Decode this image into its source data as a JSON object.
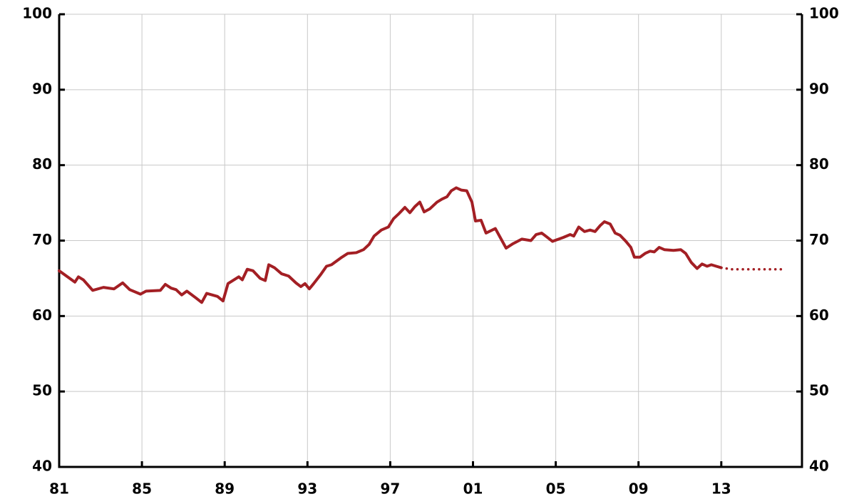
{
  "chart_data": {
    "type": "line",
    "xlim": [
      1981,
      2016.9
    ],
    "ylim": [
      40,
      100
    ],
    "xticks": [
      {
        "value": 1981,
        "label": "81"
      },
      {
        "value": 1985,
        "label": "85"
      },
      {
        "value": 1989,
        "label": "89"
      },
      {
        "value": 1993,
        "label": "93"
      },
      {
        "value": 1997,
        "label": "97"
      },
      {
        "value": 2001,
        "label": "01"
      },
      {
        "value": 2005,
        "label": "05"
      },
      {
        "value": 2009,
        "label": "09"
      },
      {
        "value": 2013,
        "label": "13"
      }
    ],
    "yticks": [
      40,
      50,
      60,
      70,
      80,
      90,
      100
    ],
    "y2lim": [
      40,
      100
    ],
    "y2ticks": [
      40,
      50,
      60,
      70,
      80,
      90,
      100
    ],
    "grid": true,
    "series": [
      {
        "color": "#a31f24",
        "style": "solid",
        "x": [
          1981.0,
          1981.76,
          1981.93,
          1982.17,
          1982.62,
          1983.14,
          1983.65,
          1984.07,
          1984.41,
          1984.93,
          1985.2,
          1985.89,
          1986.13,
          1986.41,
          1986.65,
          1986.92,
          1987.17,
          1987.61,
          1987.89,
          1988.13,
          1988.65,
          1988.92,
          1989.16,
          1989.68,
          1989.85,
          1990.09,
          1990.37,
          1990.71,
          1990.96,
          1991.13,
          1991.41,
          1991.75,
          1992.09,
          1992.44,
          1992.68,
          1992.88,
          1993.09,
          1993.3,
          1993.64,
          1993.92,
          1994.16,
          1994.61,
          1994.95,
          1995.36,
          1995.71,
          1995.98,
          1996.22,
          1996.57,
          1996.91,
          1997.16,
          1997.43,
          1997.71,
          1997.95,
          1998.19,
          1998.43,
          1998.64,
          1998.91,
          1999.26,
          1999.5,
          1999.74,
          1999.95,
          2000.19,
          2000.43,
          2000.7,
          2000.95,
          2001.12,
          2001.39,
          2001.63,
          2002.08,
          2002.32,
          2002.6,
          2002.94,
          2003.36,
          2003.8,
          2004.05,
          2004.32,
          2004.56,
          2004.84,
          2005.35,
          2005.7,
          2005.87,
          2006.11,
          2006.39,
          2006.66,
          2006.9,
          2007.15,
          2007.35,
          2007.63,
          2007.87,
          2008.11,
          2008.39,
          2008.63,
          2008.8,
          2009.07,
          2009.32,
          2009.56,
          2009.76,
          2010.0,
          2010.25,
          2010.69,
          2011.04,
          2011.28,
          2011.55,
          2011.83,
          2012.07,
          2012.31,
          2012.52,
          2012.76,
          2013.0
        ],
        "values": [
          66.0,
          64.5,
          65.2,
          64.8,
          63.4,
          63.8,
          63.6,
          64.4,
          63.5,
          62.9,
          63.3,
          63.4,
          64.2,
          63.7,
          63.5,
          62.8,
          63.3,
          62.4,
          61.8,
          63.0,
          62.6,
          62.0,
          64.3,
          65.2,
          64.8,
          66.2,
          66.0,
          65.0,
          64.7,
          66.8,
          66.4,
          65.6,
          65.3,
          64.4,
          63.9,
          64.3,
          63.6,
          64.3,
          65.5,
          66.6,
          66.8,
          67.7,
          68.3,
          68.4,
          68.8,
          69.5,
          70.6,
          71.4,
          71.8,
          72.9,
          73.6,
          74.4,
          73.7,
          74.5,
          75.1,
          73.8,
          74.2,
          75.1,
          75.5,
          75.8,
          76.6,
          77.0,
          76.7,
          76.6,
          75.1,
          72.6,
          72.7,
          71.0,
          71.6,
          70.4,
          69.0,
          69.6,
          70.2,
          70.0,
          70.8,
          71.0,
          70.5,
          69.9,
          70.4,
          70.8,
          70.6,
          71.8,
          71.2,
          71.4,
          71.2,
          72.0,
          72.5,
          72.2,
          71.0,
          70.7,
          69.9,
          69.1,
          67.8,
          67.8,
          68.3,
          68.6,
          68.5,
          69.1,
          68.8,
          68.7,
          68.8,
          68.3,
          67.1,
          66.3,
          66.9,
          66.6,
          66.8,
          66.6,
          66.4
        ]
      },
      {
        "color": "#a31f24",
        "style": "dotted",
        "x": [
          2013.0,
          2013.25,
          2013.5,
          2013.75,
          2014.0,
          2014.25,
          2014.5,
          2014.75,
          2015.0,
          2015.25,
          2015.5,
          2015.75,
          2016.0
        ],
        "values": [
          66.4,
          66.3,
          66.2,
          66.2,
          66.2,
          66.2,
          66.2,
          66.2,
          66.2,
          66.2,
          66.2,
          66.2,
          66.2
        ]
      }
    ]
  }
}
